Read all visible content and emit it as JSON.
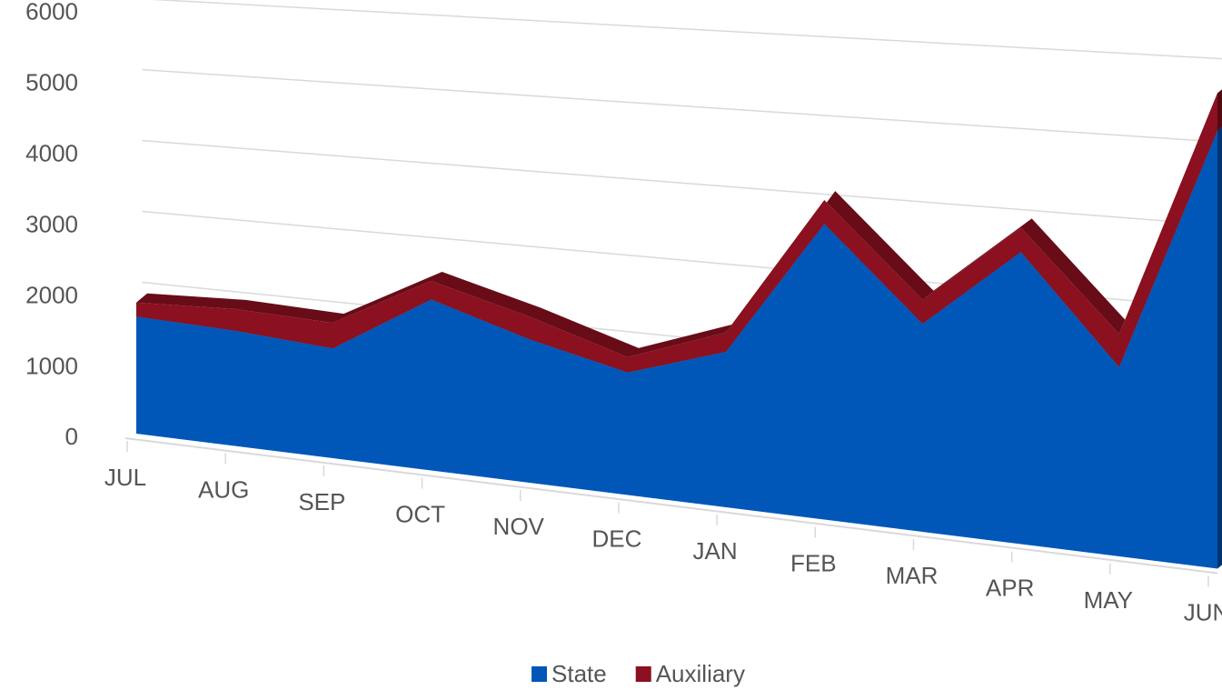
{
  "chart_data": {
    "type": "area",
    "categories": [
      "JUL",
      "AUG",
      "SEP",
      "OCT",
      "NOV",
      "DEC",
      "JAN",
      "FEB",
      "MAR",
      "APR",
      "MAY",
      "JUN"
    ],
    "series": [
      {
        "name": "State",
        "color": "#0057b8",
        "values": [
          1650,
          1600,
          1500,
          2300,
          1900,
          1600,
          2000,
          3750,
          2600,
          3600,
          2300,
          5250
        ]
      },
      {
        "name": "Auxiliary",
        "color": "#8b1020",
        "values": [
          200,
          300,
          350,
          250,
          300,
          200,
          250,
          300,
          300,
          300,
          400,
          450
        ]
      }
    ],
    "stacked": true,
    "ylim": [
      0,
      6000
    ],
    "yticks": [
      0,
      1000,
      2000,
      3000,
      4000,
      5000,
      6000
    ],
    "grid": true,
    "legend": "bottom"
  }
}
